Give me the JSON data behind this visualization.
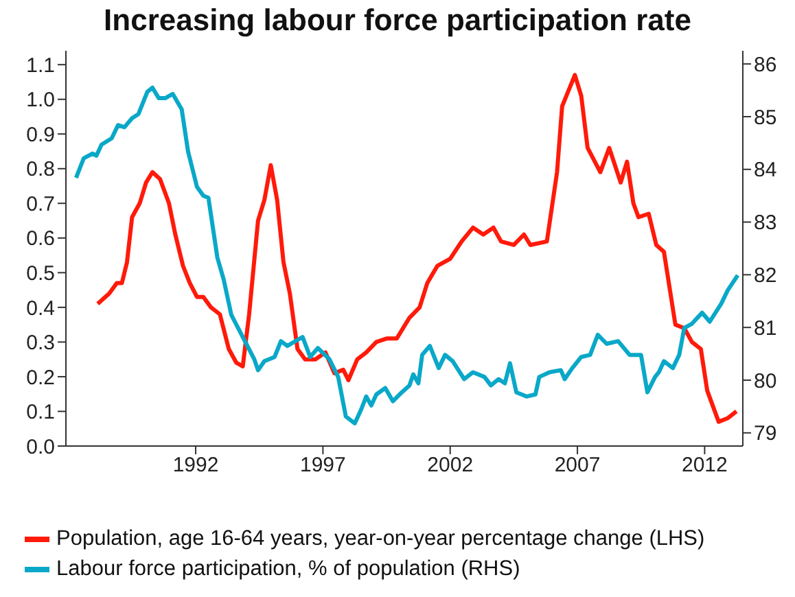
{
  "chart_data": {
    "type": "line",
    "title": "Increasing labour force participation rate",
    "xlim": [
      1986.9,
      2013.5
    ],
    "xticks": [
      1992,
      1997,
      2002,
      2007,
      2012
    ],
    "ylim": [
      0,
      1.14
    ],
    "yticks": [
      {
        "value": 0,
        "label": "0.0"
      },
      {
        "value": 0.1,
        "label": "0.1"
      },
      {
        "value": 0.2,
        "label": "0.2"
      },
      {
        "value": 0.3,
        "label": "0.3"
      },
      {
        "value": 0.4,
        "label": "0.4"
      },
      {
        "value": 0.5,
        "label": "0.5"
      },
      {
        "value": 0.6,
        "label": "0.6"
      },
      {
        "value": 0.7,
        "label": "0.7"
      },
      {
        "value": 0.8,
        "label": "0.8"
      },
      {
        "value": 0.9,
        "label": "0.9"
      },
      {
        "value": 1.0,
        "label": "1.0"
      },
      {
        "value": 1.1,
        "label": "1.1"
      }
    ],
    "y2lim": [
      78.75,
      86.25
    ],
    "y2ticks": [
      79,
      80,
      81,
      82,
      83,
      84,
      85,
      86
    ],
    "legend": "bottom",
    "marker": "none",
    "line_style": "solid",
    "series": [
      {
        "name": "Population, age 16-64 years, year-on-year percentage change (LHS)",
        "color": "#ff1a0a",
        "x": [
          1988.15,
          1988.6,
          1988.9,
          1989.1,
          1989.3,
          1989.5,
          1989.8,
          1990.05,
          1990.3,
          1990.6,
          1990.95,
          1991.2,
          1991.5,
          1991.77,
          1992.05,
          1992.3,
          1992.6,
          1992.95,
          1993.3,
          1993.6,
          1993.85,
          1994.1,
          1994.45,
          1994.7,
          1994.95,
          1995.2,
          1995.45,
          1995.7,
          1996.0,
          1996.3,
          1996.7,
          1997.1,
          1997.45,
          1997.8,
          1998.0,
          1998.35,
          1998.7,
          1999.1,
          1999.5,
          1999.9,
          2000.4,
          2000.8,
          2001.1,
          2001.5,
          2002.0,
          2002.45,
          2002.9,
          2003.3,
          2003.7,
          2004.0,
          2004.5,
          2004.9,
          2005.15,
          2005.8,
          2006.2,
          2006.4,
          2006.9,
          2007.15,
          2007.4,
          2007.9,
          2008.25,
          2008.7,
          2008.95,
          2009.2,
          2009.4,
          2009.8,
          2010.1,
          2010.4,
          2010.85,
          2011.2,
          2011.5,
          2011.85,
          2012.1,
          2012.55,
          2012.9,
          2013.25
        ],
        "values": [
          0.41,
          0.44,
          0.47,
          0.47,
          0.53,
          0.66,
          0.7,
          0.76,
          0.79,
          0.77,
          0.7,
          0.61,
          0.52,
          0.47,
          0.43,
          0.43,
          0.4,
          0.38,
          0.28,
          0.24,
          0.23,
          0.38,
          0.65,
          0.71,
          0.81,
          0.71,
          0.53,
          0.44,
          0.28,
          0.25,
          0.25,
          0.27,
          0.21,
          0.22,
          0.19,
          0.25,
          0.27,
          0.3,
          0.31,
          0.31,
          0.37,
          0.4,
          0.47,
          0.52,
          0.54,
          0.59,
          0.63,
          0.61,
          0.63,
          0.59,
          0.58,
          0.61,
          0.58,
          0.59,
          0.79,
          0.98,
          1.07,
          1.01,
          0.86,
          0.79,
          0.86,
          0.76,
          0.82,
          0.7,
          0.66,
          0.67,
          0.58,
          0.56,
          0.35,
          0.34,
          0.3,
          0.28,
          0.16,
          0.07,
          0.08,
          0.1
        ]
      },
      {
        "name": "Labour force participation, % of population (RHS)",
        "color": "#0aa8c8",
        "axis": "y2",
        "x": [
          1987.3,
          1987.6,
          1987.95,
          1988.1,
          1988.3,
          1988.7,
          1988.95,
          1989.2,
          1989.5,
          1989.75,
          1990.1,
          1990.3,
          1990.55,
          1990.8,
          1991.1,
          1991.45,
          1991.7,
          1992.05,
          1992.3,
          1992.5,
          1992.85,
          1993.1,
          1993.4,
          1993.85,
          1994.3,
          1994.45,
          1994.7,
          1995.1,
          1995.35,
          1995.6,
          1996.2,
          1996.5,
          1996.8,
          1997.25,
          1997.6,
          1997.9,
          1998.25,
          1998.5,
          1998.7,
          1998.9,
          1999.1,
          1999.45,
          1999.75,
          2000.1,
          2000.4,
          2000.55,
          2000.75,
          2000.9,
          2001.2,
          2001.55,
          2001.8,
          2002.1,
          2002.55,
          2002.9,
          2003.35,
          2003.6,
          2003.9,
          2004.15,
          2004.35,
          2004.6,
          2005.0,
          2005.35,
          2005.5,
          2005.9,
          2006.35,
          2006.5,
          2006.8,
          2007.15,
          2007.5,
          2007.8,
          2008.15,
          2008.6,
          2009.05,
          2009.5,
          2009.75,
          2010.05,
          2010.2,
          2010.4,
          2010.75,
          2011.0,
          2011.2,
          2011.5,
          2011.9,
          2012.2,
          2012.65,
          2012.9,
          2013.3
        ],
        "values": [
          83.84,
          84.21,
          84.3,
          84.26,
          84.47,
          84.59,
          84.84,
          84.8,
          84.97,
          85.05,
          85.47,
          85.55,
          85.35,
          85.35,
          85.43,
          85.14,
          84.34,
          83.67,
          83.5,
          83.46,
          82.33,
          81.91,
          81.24,
          80.82,
          80.4,
          80.19,
          80.36,
          80.44,
          80.74,
          80.65,
          80.82,
          80.44,
          80.61,
          80.4,
          80.06,
          79.31,
          79.18,
          79.44,
          79.69,
          79.52,
          79.73,
          79.85,
          79.6,
          79.77,
          79.9,
          80.11,
          79.94,
          80.48,
          80.65,
          80.23,
          80.48,
          80.36,
          80.02,
          80.15,
          80.06,
          79.9,
          80.02,
          79.94,
          80.32,
          79.77,
          79.69,
          79.73,
          80.06,
          80.15,
          80.19,
          80.02,
          80.23,
          80.44,
          80.48,
          80.86,
          80.69,
          80.74,
          80.48,
          80.48,
          79.77,
          80.06,
          80.15,
          80.36,
          80.23,
          80.48,
          80.99,
          81.07,
          81.28,
          81.11,
          81.45,
          81.7,
          81.99
        ]
      }
    ]
  }
}
